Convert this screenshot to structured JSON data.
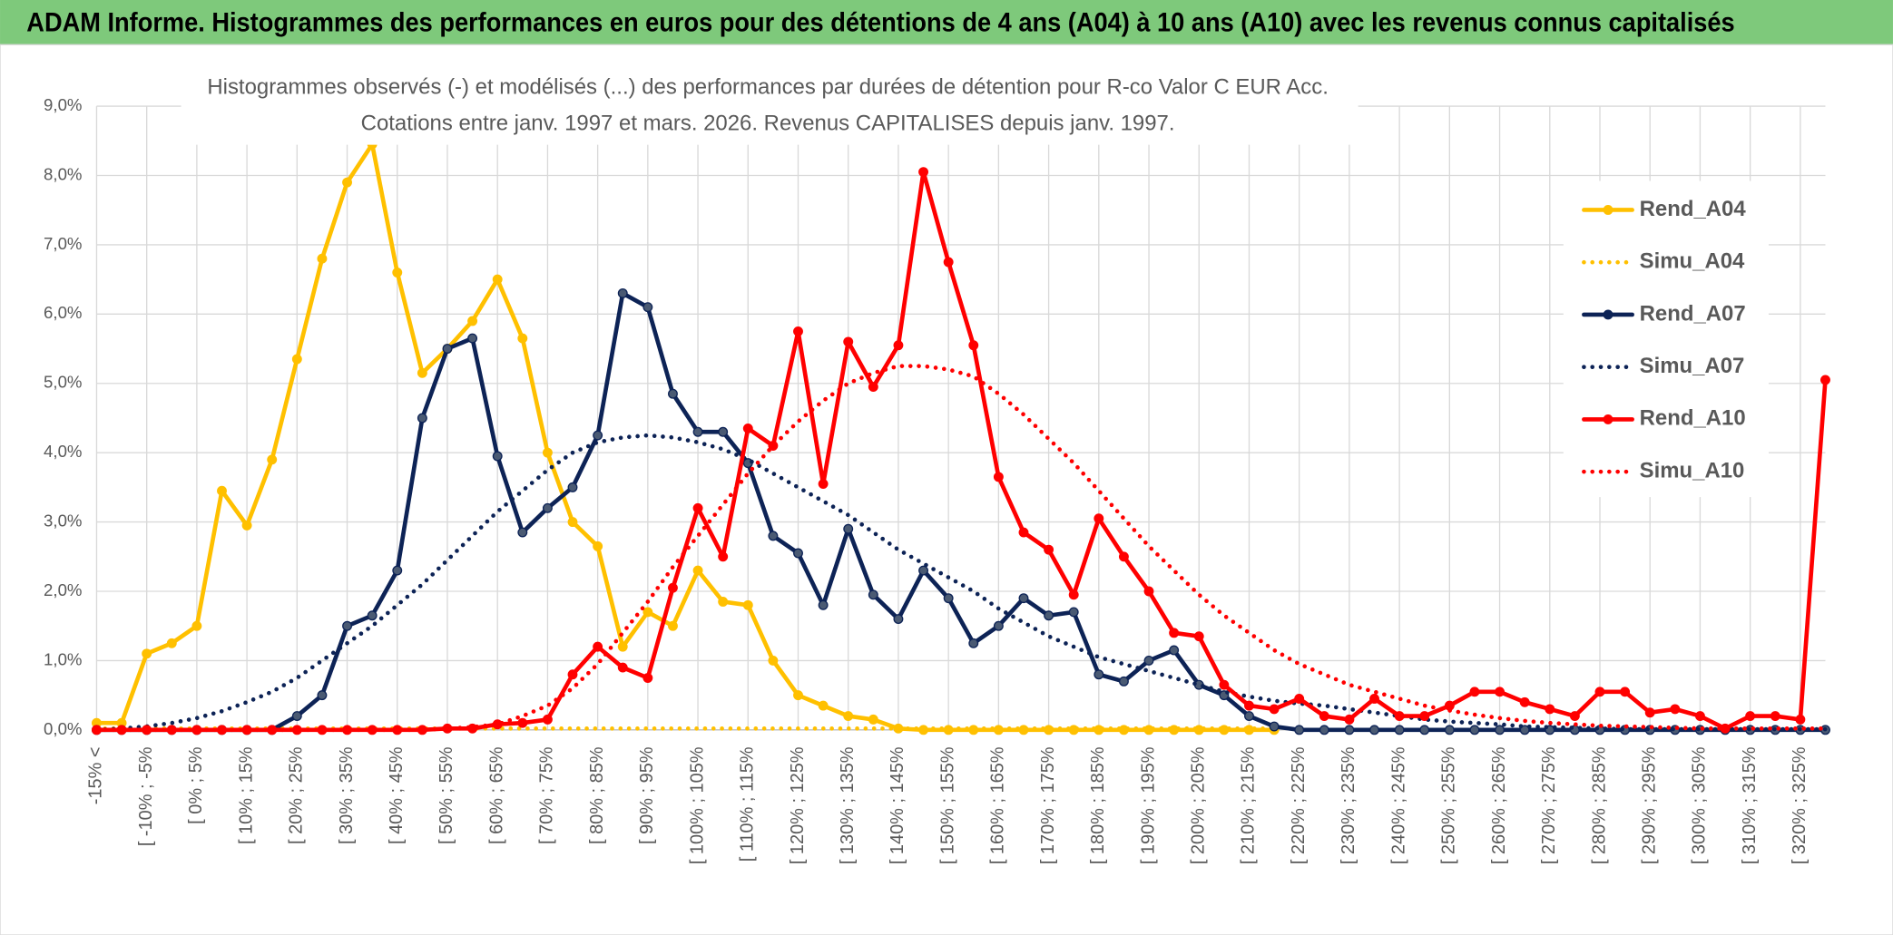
{
  "header": "ADAM Informe. Histogrammes des performances en euros pour des détentions de 4 ans (A04) à 10 ans (A10) avec les revenus connus capitalisés",
  "chart_data": {
    "type": "line",
    "title": "Histogrammes observés (-) et modélisés (...) des performances par durées de détention pour R-co Valor C EUR Acc.",
    "subtitle": "Cotations entre janv. 1997 et mars. 2026.  Revenus CAPITALISES depuis janv. 1997.",
    "categories": [
      "-15% <",
      null,
      "[ -10% ; -5%",
      null,
      "[ 0% ; 5%",
      null,
      "[ 10% ; 15%",
      null,
      "[ 20% ; 25%",
      null,
      "[ 30% ; 35%",
      null,
      "[ 40% ; 45%",
      null,
      "[ 50% ; 55%",
      null,
      "[ 60% ; 65%",
      null,
      "[ 70% ; 75%",
      null,
      "[ 80% ; 85%",
      null,
      "[ 90% ; 95%",
      null,
      "[ 100% ; 105%",
      null,
      "[ 110% ; 115%",
      null,
      "[ 120% ; 125%",
      null,
      "[ 130% ; 135%",
      null,
      "[ 140% ; 145%",
      null,
      "[ 150% ; 155%",
      null,
      "[ 160% ; 165%",
      null,
      "[ 170% ; 175%",
      null,
      "[ 180% ; 185%",
      null,
      "[ 190% ; 195%",
      null,
      "[ 200% ; 205%",
      null,
      "[ 210% ; 215%",
      null,
      "[ 220% ; 225%",
      null,
      "[ 230% ; 235%",
      null,
      "[ 240% ; 245%",
      null,
      "[ 250% ; 255%",
      null,
      "[ 260% ; 265%",
      null,
      "[ 270% ; 275%",
      null,
      "[ 280% ; 285%",
      null,
      "[ 290% ; 295%",
      null,
      "[ 300% ; 305%",
      null,
      "[ 310% ; 315%",
      null,
      "[ 320% ; 325%",
      null
    ],
    "series": [
      {
        "name": "Rend_A04",
        "color": "#ffc000",
        "style": "solid",
        "markers": true,
        "values": [
          0.1,
          0.1,
          1.1,
          1.25,
          1.5,
          3.45,
          2.95,
          3.9,
          5.35,
          6.8,
          7.9,
          8.45,
          6.6,
          5.15,
          5.5,
          5.9,
          6.5,
          5.65,
          4.0,
          3.0,
          2.65,
          1.2,
          1.7,
          1.5,
          2.3,
          1.85,
          1.8,
          1.0,
          0.5,
          0.35,
          0.2,
          0.15,
          0.02,
          0,
          0,
          0,
          0,
          0,
          0,
          0,
          0,
          0,
          0,
          0,
          0,
          0,
          0,
          0,
          null,
          null,
          null,
          null,
          null,
          null,
          null,
          null,
          null,
          null,
          null,
          null,
          null,
          null,
          null,
          null,
          null,
          null,
          null,
          null,
          null,
          null
        ]
      },
      {
        "name": "Simu_A04",
        "color": "#ffc000",
        "style": "dotted",
        "markers": false,
        "values": [
          0.02,
          0.02,
          0.02,
          0.02,
          0.02,
          0.02,
          0.02,
          0.02,
          0.02,
          0.02,
          0.02,
          0.02,
          0.02,
          0.02,
          0.02,
          0.02,
          0.02,
          0.02,
          0.02,
          0.02,
          0.02,
          0.02,
          0.02,
          0.02,
          0.02,
          0.02,
          0.02,
          0.02,
          0.02,
          0.02,
          0.02,
          0.02,
          0.02,
          0.02,
          0.02,
          0.02,
          0.02,
          0.02,
          0.02,
          0.02,
          0.02,
          0.02,
          0.02,
          0.02,
          0.02,
          0.02,
          0.02,
          0.02,
          null,
          null,
          null,
          null,
          null,
          null,
          null,
          null,
          null,
          null,
          null,
          null,
          null,
          null,
          null,
          null,
          null,
          null,
          null,
          null,
          null,
          null
        ]
      },
      {
        "name": "Rend_A07",
        "color": "#0d2356",
        "style": "solid",
        "markers": true,
        "values": [
          0,
          0,
          0,
          0,
          0,
          0,
          0,
          0,
          0.2,
          0.5,
          1.5,
          1.65,
          2.3,
          4.5,
          5.5,
          5.65,
          3.95,
          2.85,
          3.2,
          3.5,
          4.25,
          6.3,
          6.1,
          4.85,
          4.3,
          4.3,
          3.85,
          2.8,
          2.55,
          1.8,
          2.9,
          1.95,
          1.6,
          2.3,
          1.9,
          1.25,
          1.5,
          1.9,
          1.65,
          1.7,
          0.8,
          0.7,
          1.0,
          1.15,
          0.65,
          0.5,
          0.2,
          0.05,
          0,
          0,
          0,
          0,
          0,
          0,
          0,
          0,
          0,
          0,
          0,
          0,
          0,
          0,
          0,
          0,
          0,
          0,
          0,
          0,
          0,
          0
        ]
      },
      {
        "name": "Simu_A07",
        "color": "#0d2356",
        "style": "dotted",
        "markers": false,
        "values": [
          0,
          0.02,
          0.05,
          0.1,
          0.17,
          0.27,
          0.4,
          0.55,
          0.75,
          1.0,
          1.25,
          1.5,
          1.8,
          2.1,
          2.45,
          2.8,
          3.15,
          3.45,
          3.75,
          4.0,
          4.15,
          4.22,
          4.25,
          4.22,
          4.15,
          4.05,
          3.9,
          3.7,
          3.5,
          3.3,
          3.1,
          2.85,
          2.6,
          2.4,
          2.2,
          2.0,
          1.75,
          1.55,
          1.35,
          1.2,
          1.05,
          0.95,
          0.85,
          0.75,
          0.65,
          0.55,
          0.48,
          0.42,
          0.38,
          0.35,
          0.3,
          0.25,
          0.2,
          0.15,
          0.12,
          0.1,
          0.08,
          0.05,
          0.04,
          0.03,
          0.02,
          0.01,
          0.01,
          0.01,
          0.01,
          0.01,
          0.01,
          0.01,
          0.01,
          0.01
        ]
      },
      {
        "name": "Rend_A10",
        "color": "#ff0000",
        "style": "solid",
        "markers": true,
        "values": [
          0,
          0,
          0,
          0,
          0,
          0,
          0,
          0,
          0,
          0,
          0,
          0,
          0,
          0,
          0.02,
          0.02,
          0.08,
          0.1,
          0.15,
          0.8,
          1.2,
          0.9,
          0.75,
          2.05,
          3.2,
          2.5,
          4.35,
          4.1,
          5.75,
          3.55,
          5.6,
          4.95,
          5.55,
          8.05,
          6.75,
          5.55,
          3.65,
          2.85,
          2.6,
          1.95,
          3.05,
          2.5,
          2.0,
          1.4,
          1.35,
          0.65,
          0.35,
          0.3,
          0.45,
          0.2,
          0.15,
          0.45,
          0.2,
          0.2,
          0.35,
          0.55,
          0.55,
          0.4,
          0.3,
          0.2,
          0.55,
          0.55,
          0.25,
          0.3,
          0.2,
          0.02,
          0.2,
          0.2,
          0.15,
          5.05
        ]
      },
      {
        "name": "Simu_A10",
        "color": "#ff0000",
        "style": "dotted",
        "markers": false,
        "values": [
          0,
          0,
          0,
          0,
          0,
          0,
          0,
          0,
          0,
          0,
          0,
          0,
          0,
          0,
          0.02,
          0.04,
          0.08,
          0.2,
          0.35,
          0.6,
          0.95,
          1.4,
          1.85,
          2.35,
          2.8,
          3.25,
          3.7,
          4.1,
          4.45,
          4.75,
          5.0,
          5.15,
          5.25,
          5.25,
          5.2,
          5.1,
          4.85,
          4.55,
          4.2,
          3.85,
          3.45,
          3.05,
          2.65,
          2.3,
          1.95,
          1.65,
          1.4,
          1.15,
          0.95,
          0.8,
          0.65,
          0.55,
          0.45,
          0.35,
          0.28,
          0.22,
          0.17,
          0.13,
          0.1,
          0.08,
          0.06,
          0.05,
          0.04,
          0.03,
          0.02,
          0.02,
          0.02,
          0.02,
          0.02,
          0.02
        ]
      }
    ],
    "ylim": [
      0,
      9
    ],
    "yticks": [
      {
        "value": 0,
        "label": "0,0%"
      },
      {
        "value": 1,
        "label": "1,0%"
      },
      {
        "value": 2,
        "label": "2,0%"
      },
      {
        "value": 3,
        "label": "3,0%"
      },
      {
        "value": 4,
        "label": "4,0%"
      },
      {
        "value": 5,
        "label": "5,0%"
      },
      {
        "value": 6,
        "label": "6,0%"
      },
      {
        "value": 7,
        "label": "7,0%"
      },
      {
        "value": 8,
        "label": "8,0%"
      },
      {
        "value": 9,
        "label": "9,0%"
      }
    ],
    "grid": true,
    "legend": "right"
  }
}
